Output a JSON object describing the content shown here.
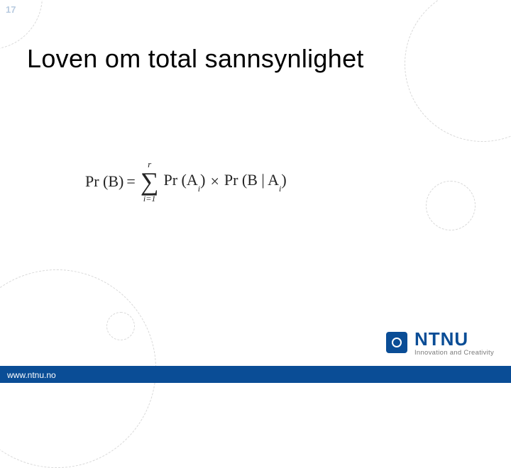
{
  "slide": {
    "page_number": "17",
    "title": "Loven om total sannsynlighet",
    "background_color": "#ffffff"
  },
  "formula": {
    "lhs_text": "Pr (B)",
    "equals": "=",
    "sum_upper": "r",
    "sum_lower": "i=1",
    "term1_pre": "Pr (A",
    "term1_sub": "i",
    "term1_post": ")",
    "mult": "×",
    "term2_pre": "Pr (B | A",
    "term2_sub": "i",
    "term2_post": ")",
    "text_color": "#242424",
    "font_family": "Times New Roman",
    "base_fontsize": 22
  },
  "decor_circles": {
    "color": "#d8d8d8"
  },
  "logo": {
    "name": "NTNU",
    "tagline": "Innovation and Creativity",
    "brand_color": "#0a4d96",
    "square_bg": "#0a4d96",
    "text_color_big": "#0a4d96",
    "text_color_small": "#7a7a7a"
  },
  "footer": {
    "bar_color": "#0a4d96",
    "url": "www.ntnu.no",
    "url_color": "#ffffff"
  },
  "colors": {
    "page_number": "#b8cbe0"
  }
}
